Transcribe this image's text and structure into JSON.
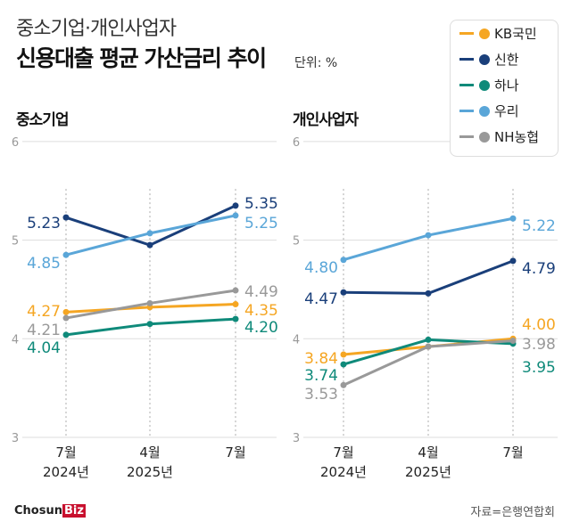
{
  "header": {
    "supertitle": "중소기업·개인사업자",
    "title": "신용대출 평균 가산금리 추이",
    "unit": "단위: %"
  },
  "legend": [
    {
      "name": "KB국민",
      "color": "#f5a623",
      "icon": "kb-star-icon"
    },
    {
      "name": "신한",
      "color": "#1a3f7a",
      "icon": "shinhan-globe-icon"
    },
    {
      "name": "하나",
      "color": "#0f8a7a",
      "icon": "hana-person-icon"
    },
    {
      "name": "우리",
      "color": "#5aa6d8",
      "icon": "woori-circle-icon"
    },
    {
      "name": "NH농협",
      "color": "#999999",
      "icon": "nh-badge-icon"
    }
  ],
  "chart_data": [
    {
      "type": "line",
      "title": "중소기업",
      "categories": [
        "7월\n2024년",
        "4월\n2025년",
        "7월"
      ],
      "ylim": [
        3,
        6
      ],
      "yticks": [
        3,
        4,
        5,
        6
      ],
      "grid": true,
      "series": [
        {
          "name": "KB국민",
          "values": [
            4.27,
            4.32,
            4.35
          ]
        },
        {
          "name": "신한",
          "values": [
            5.23,
            4.95,
            5.35
          ]
        },
        {
          "name": "하나",
          "values": [
            4.04,
            4.15,
            4.2
          ]
        },
        {
          "name": "우리",
          "values": [
            4.85,
            5.07,
            5.25
          ]
        },
        {
          "name": "NH농협",
          "values": [
            4.21,
            4.36,
            4.49
          ]
        }
      ]
    },
    {
      "type": "line",
      "title": "개인사업자",
      "categories": [
        "7월\n2024년",
        "4월\n2025년",
        "7월"
      ],
      "ylim": [
        3,
        6
      ],
      "yticks": [
        3,
        4,
        5,
        6
      ],
      "grid": true,
      "series": [
        {
          "name": "KB국민",
          "values": [
            3.84,
            3.92,
            4.0
          ]
        },
        {
          "name": "신한",
          "values": [
            4.47,
            4.46,
            4.79
          ]
        },
        {
          "name": "하나",
          "values": [
            3.74,
            3.99,
            3.95
          ]
        },
        {
          "name": "우리",
          "values": [
            4.8,
            5.05,
            5.22
          ]
        },
        {
          "name": "NH농협",
          "values": [
            3.53,
            3.92,
            3.98
          ]
        }
      ]
    }
  ],
  "footer": {
    "logo": "ChosunBiz",
    "source": "자료=은행연합회"
  }
}
